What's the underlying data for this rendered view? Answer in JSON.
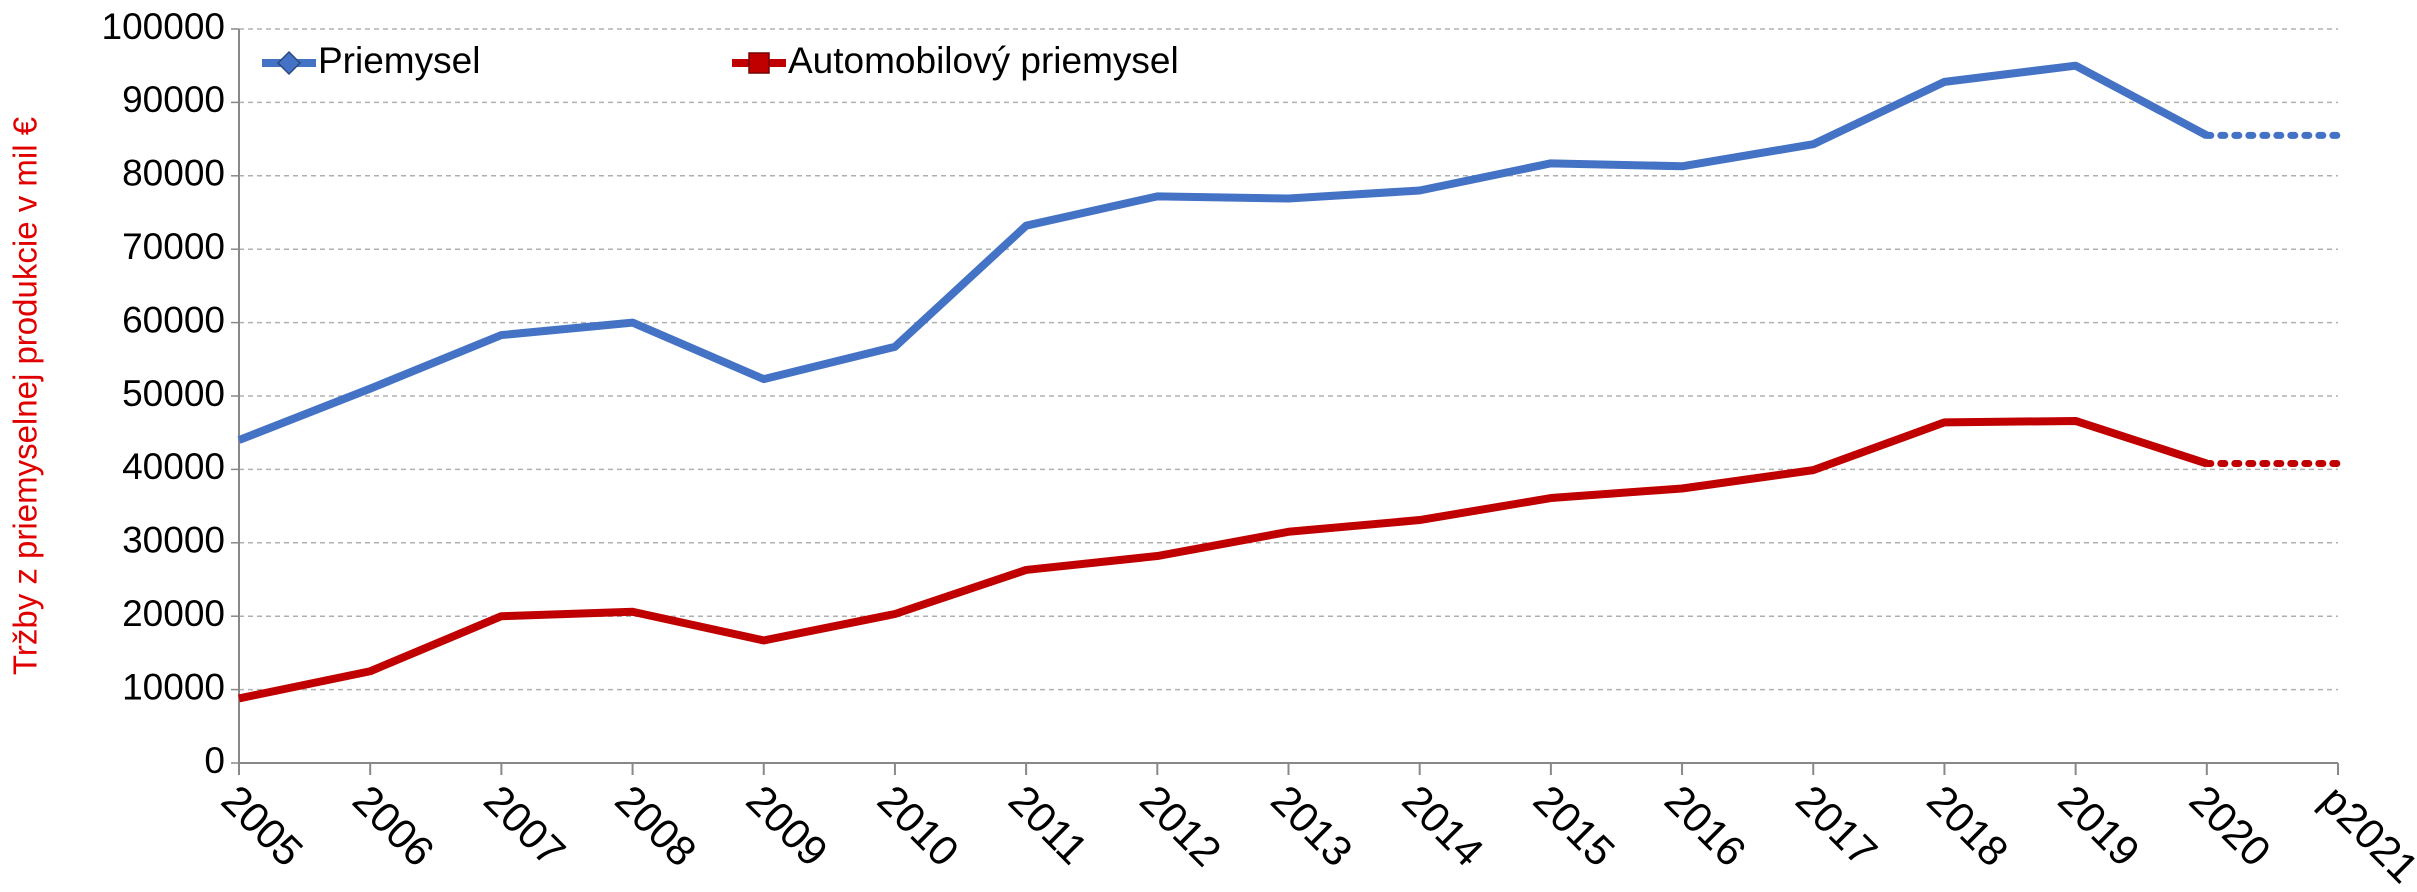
{
  "chart_data": {
    "type": "line",
    "y_label": "Tržby z priemyselnej produkcie v mil €",
    "categories": [
      "2005",
      "2006",
      "2007",
      "2008",
      "2009",
      "2010",
      "2011",
      "2012",
      "2013",
      "2014",
      "2015",
      "2016",
      "2017",
      "2018",
      "2019",
      "2020",
      "p2021"
    ],
    "series": [
      {
        "name": "Priemysel",
        "color": "#4472c4",
        "marker": "diamond",
        "dotted_after": "2020",
        "values": [
          44000,
          51000,
          58300,
          60000,
          52300,
          56700,
          73200,
          77200,
          76900,
          78000,
          81700,
          81300,
          84300,
          92800,
          95000,
          85500,
          85500
        ]
      },
      {
        "name": "Automobilový priemysel",
        "color": "#c00000",
        "marker": "square",
        "dotted_after": "2020",
        "values": [
          8800,
          12500,
          20000,
          20600,
          16700,
          20300,
          26300,
          28200,
          31500,
          33100,
          36100,
          37400,
          39900,
          46400,
          46600,
          40800,
          40800
        ]
      }
    ],
    "ylim": [
      0,
      100000
    ],
    "yticks": [
      0,
      10000,
      20000,
      30000,
      40000,
      50000,
      60000,
      70000,
      80000,
      90000,
      100000
    ],
    "grid": true,
    "legend": "top"
  }
}
